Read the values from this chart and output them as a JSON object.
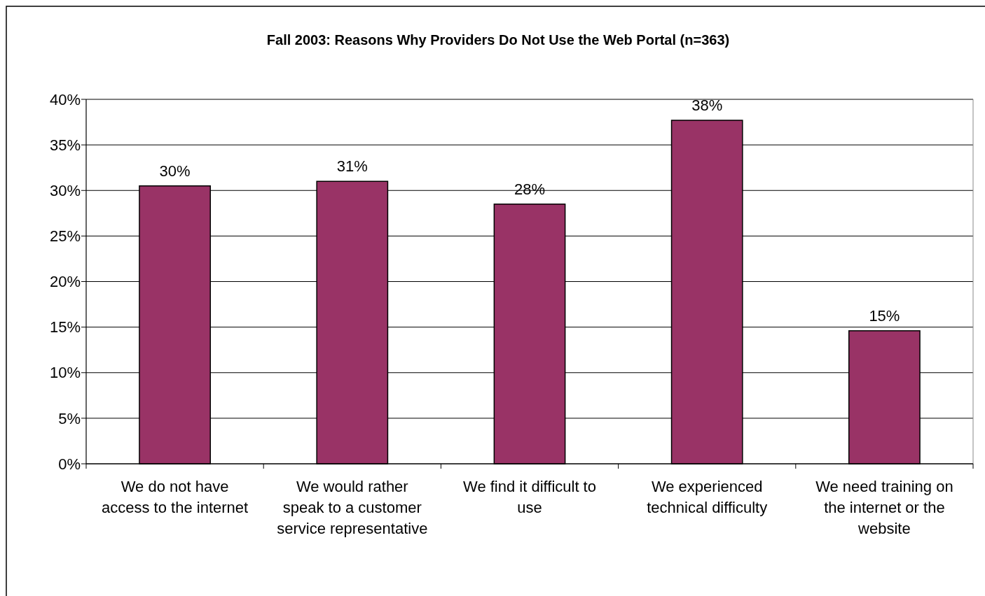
{
  "chart_data": {
    "type": "bar",
    "title": "Fall 2003: Reasons Why Providers Do Not Use the Web Portal (n=363)",
    "categories": [
      "We do not have access to the internet",
      "We would rather speak to a customer service representative",
      "We find it difficult to use",
      "We experienced technical difficulty",
      "We need training on the internet or the website"
    ],
    "values": [
      30.5,
      31,
      28.5,
      37.7,
      14.6
    ],
    "value_labels": [
      "30%",
      "31%",
      "28%",
      "38%",
      "15%"
    ],
    "color": "#993366",
    "ylim": [
      0,
      40
    ],
    "yticks": [
      {
        "value": 0,
        "label": "0%"
      },
      {
        "value": 5,
        "label": "5%"
      },
      {
        "value": 10,
        "label": "10%"
      },
      {
        "value": 15,
        "label": "15%"
      },
      {
        "value": 20,
        "label": "20%"
      },
      {
        "value": 25,
        "label": "25%"
      },
      {
        "value": 30,
        "label": "30%"
      },
      {
        "value": 35,
        "label": "35%"
      },
      {
        "value": 40,
        "label": "40%"
      }
    ],
    "grid": "y"
  }
}
